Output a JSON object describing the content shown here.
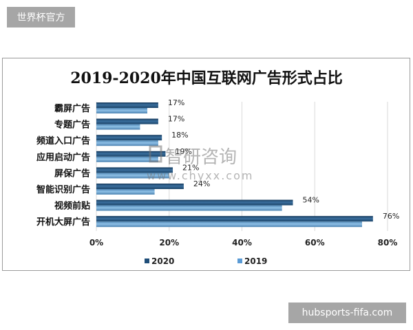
{
  "watermarks": {
    "top_left": "世界杯官方",
    "bottom_right": "hubsports-fifa.com",
    "center_logo": "智研咨询",
    "center_url": "www.chyxx.com"
  },
  "colors": {
    "series_2020": "#1f4e79",
    "series_2019": "#5b9bd5"
  },
  "chart_data": {
    "type": "bar",
    "orientation": "horizontal",
    "title": "2019-2020年中国互联网广告形式占比",
    "categories": [
      "霸屏广告",
      "专题广告",
      "频道入口广告",
      "应用启动广告",
      "屏保广告",
      "智能识别广告",
      "视频前贴",
      "开机大屏广告"
    ],
    "series": [
      {
        "name": "2020",
        "values": [
          17,
          17,
          18,
          19,
          21,
          24,
          54,
          76
        ],
        "labels": [
          "17%",
          "17%",
          "18%",
          "19%",
          "21%",
          "24%",
          "54%",
          "76%"
        ]
      },
      {
        "name": "2019",
        "values": [
          14,
          12,
          17,
          17,
          20,
          16,
          51,
          73
        ]
      }
    ],
    "xlim": [
      0,
      80
    ],
    "xticks": [
      "0%",
      "20%",
      "40%",
      "60%",
      "80%"
    ],
    "grid": true,
    "legend_position": "bottom"
  }
}
